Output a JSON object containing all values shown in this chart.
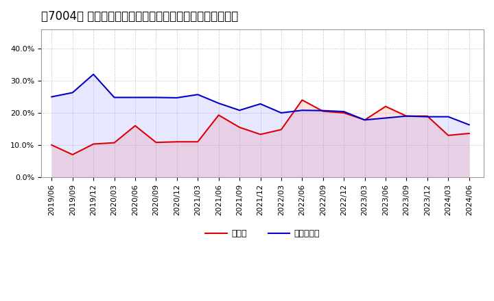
{
  "title_raw": "［7004］ 現預金、有利子負債の総資産に対する比率の推移",
  "x_labels": [
    "2019/06",
    "2019/09",
    "2019/12",
    "2020/03",
    "2020/06",
    "2020/09",
    "2020/12",
    "2021/03",
    "2021/06",
    "2021/09",
    "2021/12",
    "2022/03",
    "2022/06",
    "2022/09",
    "2022/12",
    "2023/03",
    "2023/06",
    "2023/09",
    "2023/12",
    "2024/03",
    "2024/06"
  ],
  "cash_ratio": [
    0.1,
    0.07,
    0.103,
    0.107,
    0.16,
    0.108,
    0.11,
    0.11,
    0.193,
    0.155,
    0.133,
    0.148,
    0.24,
    0.205,
    0.2,
    0.178,
    0.22,
    0.19,
    0.19,
    0.13,
    0.136
  ],
  "debt_ratio": [
    0.25,
    0.263,
    0.32,
    0.248,
    0.248,
    0.248,
    0.247,
    0.257,
    0.23,
    0.208,
    0.228,
    0.2,
    0.208,
    0.207,
    0.204,
    0.178,
    0.184,
    0.19,
    0.188,
    0.188,
    0.163
  ],
  "cash_color": "#dd0000",
  "debt_color": "#0000cc",
  "fill_cash_color": "#ff8888",
  "fill_debt_color": "#8888ff",
  "background_color": "#ffffff",
  "plot_bg_color": "#ffffff",
  "grid_color": "#bbbbbb",
  "ylim": [
    0.0,
    0.46
  ],
  "yticks": [
    0.0,
    0.1,
    0.2,
    0.3,
    0.4
  ],
  "legend_cash": "現預金",
  "legend_debt": "有利子負債",
  "title_fontsize": 12,
  "tick_fontsize": 8,
  "legend_fontsize": 9,
  "line_width": 1.5
}
